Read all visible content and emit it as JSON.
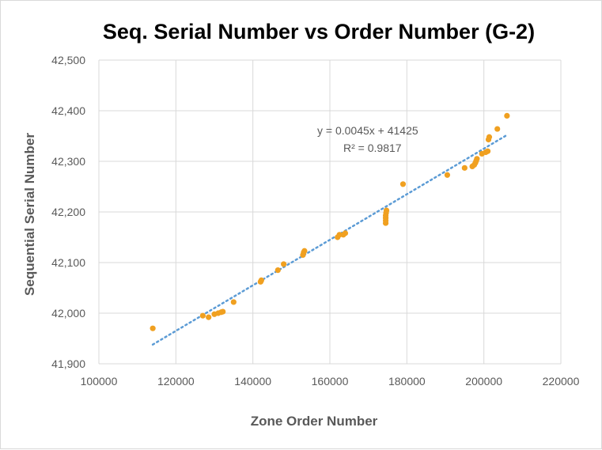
{
  "chart_data": {
    "type": "scatter",
    "title": "Seq. Serial Number vs Order Number (G-2)",
    "xlabel": "Zone Order Number",
    "ylabel": "Sequential Serial Number",
    "xlim": [
      100000,
      220000
    ],
    "ylim": [
      41900,
      42500
    ],
    "x_ticks": [
      100000,
      120000,
      140000,
      160000,
      180000,
      200000,
      220000
    ],
    "x_tick_labels": [
      "100000",
      "120000",
      "140000",
      "160000",
      "180000",
      "200000",
      "220000"
    ],
    "y_ticks": [
      41900,
      42000,
      42100,
      42200,
      42300,
      42400,
      42500
    ],
    "y_tick_labels": [
      "41,900",
      "42,000",
      "42,100",
      "42,200",
      "42,300",
      "42,400",
      "42,500"
    ],
    "grid": "vertical and horizontal major gridlines",
    "legend": "none",
    "marker_color": "#f0a020",
    "trendline_color": "#5b9bd5",
    "trendline": {
      "type": "linear",
      "slope": 0.0045,
      "intercept": 41425,
      "x_range": [
        114000,
        206000
      ],
      "equation_label": "y = 0.0045x  + 41425",
      "r2_label": "R² = 0.9817"
    },
    "points": [
      {
        "x": 114000,
        "y": 41970
      },
      {
        "x": 127000,
        "y": 41995
      },
      {
        "x": 128500,
        "y": 41992
      },
      {
        "x": 130000,
        "y": 41998
      },
      {
        "x": 131000,
        "y": 42000
      },
      {
        "x": 131800,
        "y": 42002
      },
      {
        "x": 132200,
        "y": 42003
      },
      {
        "x": 135000,
        "y": 42022
      },
      {
        "x": 142000,
        "y": 42062
      },
      {
        "x": 142200,
        "y": 42065
      },
      {
        "x": 146500,
        "y": 42085
      },
      {
        "x": 148000,
        "y": 42097
      },
      {
        "x": 153000,
        "y": 42115
      },
      {
        "x": 153200,
        "y": 42120
      },
      {
        "x": 153400,
        "y": 42123
      },
      {
        "x": 162000,
        "y": 42150
      },
      {
        "x": 162500,
        "y": 42155
      },
      {
        "x": 163500,
        "y": 42155
      },
      {
        "x": 164000,
        "y": 42158
      },
      {
        "x": 174500,
        "y": 42178
      },
      {
        "x": 174500,
        "y": 42183
      },
      {
        "x": 174500,
        "y": 42188
      },
      {
        "x": 174500,
        "y": 42193
      },
      {
        "x": 174600,
        "y": 42198
      },
      {
        "x": 174700,
        "y": 42203
      },
      {
        "x": 179000,
        "y": 42255
      },
      {
        "x": 190500,
        "y": 42273
      },
      {
        "x": 195000,
        "y": 42287
      },
      {
        "x": 197000,
        "y": 42290
      },
      {
        "x": 197500,
        "y": 42293
      },
      {
        "x": 197800,
        "y": 42297
      },
      {
        "x": 198000,
        "y": 42301
      },
      {
        "x": 198200,
        "y": 42305
      },
      {
        "x": 199500,
        "y": 42315
      },
      {
        "x": 200500,
        "y": 42318
      },
      {
        "x": 201000,
        "y": 42320
      },
      {
        "x": 201200,
        "y": 42343
      },
      {
        "x": 201400,
        "y": 42348
      },
      {
        "x": 203500,
        "y": 42364
      },
      {
        "x": 206000,
        "y": 42390
      }
    ]
  }
}
